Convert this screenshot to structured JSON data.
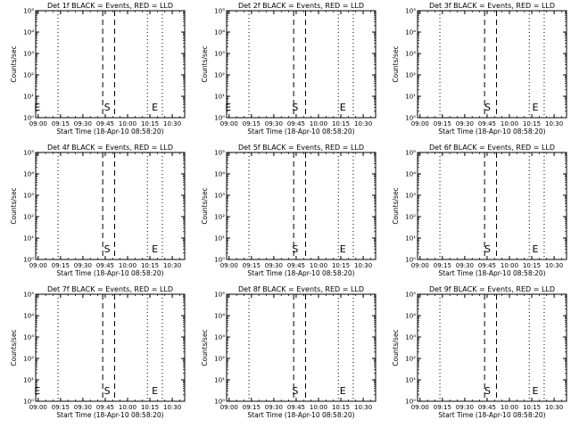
{
  "page": {
    "background": "#ffffff",
    "foreground": "#000000"
  },
  "chart_data": [
    {
      "type": "line",
      "title": "Det 1f BLACK = Events, RED = LLD",
      "xlabel": "Start Time (18-Apr-10 08:58:20)",
      "ylabel": "Counts/sec",
      "xticks": [
        "09:00",
        "09:15",
        "09:30",
        "09:45",
        "10:00",
        "10:15",
        "10:30"
      ],
      "xlim_minutes": [
        0,
        100
      ],
      "yscale": "log",
      "ylim": [
        1,
        100000
      ],
      "yticks": [
        "10⁰",
        "10¹",
        "10²",
        "10³",
        "10⁴",
        "10⁵"
      ],
      "dotted_minutes": [
        15,
        75,
        85
      ],
      "dashed_minutes": [
        45,
        53
      ],
      "markers": [
        {
          "label": "E",
          "minute": 1
        },
        {
          "label": "S",
          "minute": 48
        },
        {
          "label": "E",
          "minute": 80
        }
      ],
      "series": []
    },
    {
      "type": "line",
      "title": "Det 2f BLACK = Events, RED = LLD",
      "xlabel": "Start Time (18-Apr-10 08:58:20)",
      "ylabel": "Counts/sec",
      "xticks": [
        "09:00",
        "09:15",
        "09:30",
        "09:45",
        "10:00",
        "10:15",
        "10:30"
      ],
      "xlim_minutes": [
        0,
        100
      ],
      "yscale": "log",
      "ylim": [
        1,
        100000
      ],
      "yticks": [
        "10⁰",
        "10¹",
        "10²",
        "10³",
        "10⁴",
        "10⁵"
      ],
      "dotted_minutes": [
        15,
        75,
        85
      ],
      "dashed_minutes": [
        45,
        53
      ],
      "markers": [
        {
          "label": "E",
          "minute": 1
        },
        {
          "label": "S",
          "minute": 46
        },
        {
          "label": "E",
          "minute": 78
        }
      ],
      "series": []
    },
    {
      "type": "line",
      "title": "Det 3f BLACK = Events, RED = LLD",
      "xlabel": "Start Time (18-Apr-10 08:58:20)",
      "ylabel": "Counts/sec",
      "xticks": [
        "09:00",
        "09:15",
        "09:30",
        "09:45",
        "10:00",
        "10:15",
        "10:30"
      ],
      "xlim_minutes": [
        0,
        100
      ],
      "yscale": "log",
      "ylim": [
        1,
        100000
      ],
      "yticks": [
        "10⁰",
        "10¹",
        "10²",
        "10³",
        "10⁴",
        "10⁵"
      ],
      "dotted_minutes": [
        15,
        75,
        85
      ],
      "dashed_minutes": [
        45,
        53
      ],
      "markers": [
        {
          "label": "S",
          "minute": 47
        },
        {
          "label": "E",
          "minute": 79
        }
      ],
      "series": []
    },
    {
      "type": "line",
      "title": "Det 4f BLACK = Events, RED = LLD",
      "xlabel": "Start Time (18-Apr-10 08:58:20)",
      "ylabel": "Counts/sec",
      "xticks": [
        "09:00",
        "09:15",
        "09:30",
        "09:45",
        "10:00",
        "10:15",
        "10:30"
      ],
      "xlim_minutes": [
        0,
        100
      ],
      "yscale": "log",
      "ylim": [
        1,
        100000
      ],
      "yticks": [
        "10⁰",
        "10¹",
        "10²",
        "10³",
        "10⁴",
        "10⁵"
      ],
      "dotted_minutes": [
        15,
        75,
        85
      ],
      "dashed_minutes": [
        45,
        53
      ],
      "markers": [
        {
          "label": "S",
          "minute": 48
        },
        {
          "label": "E",
          "minute": 80
        }
      ],
      "series": []
    },
    {
      "type": "line",
      "title": "Det 5f BLACK = Events, RED = LLD",
      "xlabel": "Start Time (18-Apr-10 08:58:20)",
      "ylabel": "Counts/sec",
      "xticks": [
        "09:00",
        "09:15",
        "09:30",
        "09:45",
        "10:00",
        "10:15",
        "10:30"
      ],
      "xlim_minutes": [
        0,
        100
      ],
      "yscale": "log",
      "ylim": [
        1,
        100000
      ],
      "yticks": [
        "10⁰",
        "10¹",
        "10²",
        "10³",
        "10⁴",
        "10⁵"
      ],
      "dotted_minutes": [
        15,
        75,
        85
      ],
      "dashed_minutes": [
        45,
        53
      ],
      "markers": [
        {
          "label": "S",
          "minute": 46
        },
        {
          "label": "E",
          "minute": 78
        }
      ],
      "series": []
    },
    {
      "type": "line",
      "title": "Det 6f BLACK = Events, RED = LLD",
      "xlabel": "Start Time (18-Apr-10 08:58:20)",
      "ylabel": "Counts/sec",
      "xticks": [
        "09:00",
        "09:15",
        "09:30",
        "09:45",
        "10:00",
        "10:15",
        "10:30"
      ],
      "xlim_minutes": [
        0,
        100
      ],
      "yscale": "log",
      "ylim": [
        1,
        100000
      ],
      "yticks": [
        "10⁰",
        "10¹",
        "10²",
        "10³",
        "10⁴",
        "10⁵"
      ],
      "dotted_minutes": [
        15,
        75,
        85
      ],
      "dashed_minutes": [
        45,
        53
      ],
      "markers": [
        {
          "label": "S",
          "minute": 47
        },
        {
          "label": "E",
          "minute": 79
        }
      ],
      "series": []
    },
    {
      "type": "line",
      "title": "Det 7f BLACK = Events, RED = LLD",
      "xlabel": "Start Time (18-Apr-10 08:58:20)",
      "ylabel": "Counts/sec",
      "xticks": [
        "09:00",
        "09:15",
        "09:30",
        "09:45",
        "10:00",
        "10:15",
        "10:30"
      ],
      "xlim_minutes": [
        0,
        100
      ],
      "yscale": "log",
      "ylim": [
        1,
        100000
      ],
      "yticks": [
        "10⁰",
        "10¹",
        "10²",
        "10³",
        "10⁴",
        "10⁵"
      ],
      "dotted_minutes": [
        15,
        75,
        85
      ],
      "dashed_minutes": [
        45,
        53
      ],
      "markers": [
        {
          "label": "E",
          "minute": 1
        },
        {
          "label": "S",
          "minute": 48
        },
        {
          "label": "E",
          "minute": 80
        }
      ],
      "series": []
    },
    {
      "type": "line",
      "title": "Det 8f BLACK = Events, RED = LLD",
      "xlabel": "Start Time (18-Apr-10 08:58:20)",
      "ylabel": "Counts/sec",
      "xticks": [
        "09:00",
        "09:15",
        "09:30",
        "09:45",
        "10:00",
        "10:15",
        "10:30"
      ],
      "xlim_minutes": [
        0,
        100
      ],
      "yscale": "log",
      "ylim": [
        1,
        100000
      ],
      "yticks": [
        "10⁰",
        "10¹",
        "10²",
        "10³",
        "10⁴",
        "10⁵"
      ],
      "dotted_minutes": [
        15,
        75,
        85
      ],
      "dashed_minutes": [
        45,
        53
      ],
      "markers": [
        {
          "label": "S",
          "minute": 46
        },
        {
          "label": "E",
          "minute": 78
        }
      ],
      "series": []
    },
    {
      "type": "line",
      "title": "Det 9f BLACK = Events, RED = LLD",
      "xlabel": "Start Time (18-Apr-10 08:58:20)",
      "ylabel": "Counts/sec",
      "xticks": [
        "09:00",
        "09:15",
        "09:30",
        "09:45",
        "10:00",
        "10:15",
        "10:30"
      ],
      "xlim_minutes": [
        0,
        100
      ],
      "yscale": "log",
      "ylim": [
        1,
        100000
      ],
      "yticks": [
        "10⁰",
        "10¹",
        "10²",
        "10³",
        "10⁴",
        "10⁵"
      ],
      "dotted_minutes": [
        15,
        75,
        85
      ],
      "dashed_minutes": [
        45,
        53
      ],
      "markers": [
        {
          "label": "S",
          "minute": 47
        },
        {
          "label": "E",
          "minute": 79
        }
      ],
      "series": []
    }
  ]
}
